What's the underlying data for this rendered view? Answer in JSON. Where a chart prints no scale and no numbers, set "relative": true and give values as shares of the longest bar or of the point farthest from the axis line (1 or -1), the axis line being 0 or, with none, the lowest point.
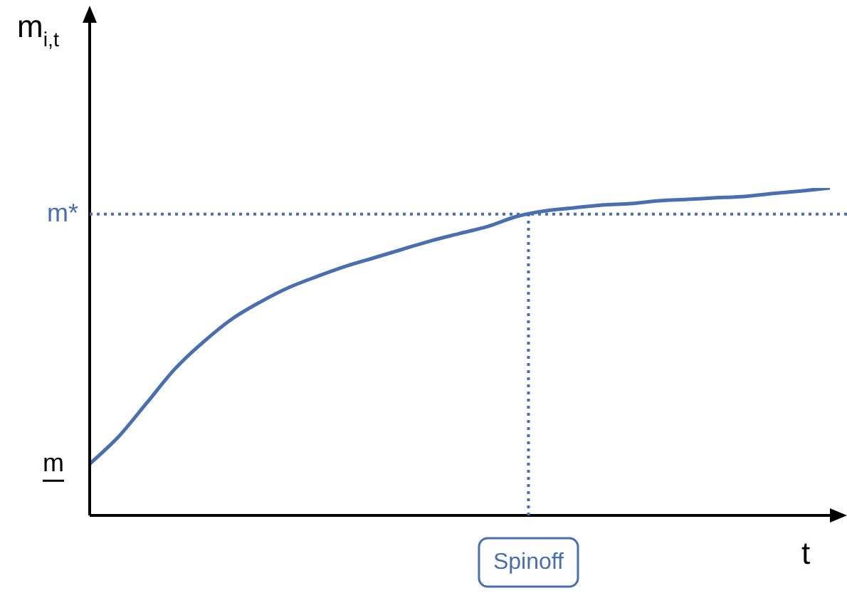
{
  "chart_data": {
    "type": "line",
    "relative": true,
    "xlabel": "t",
    "ylabel": "m$_{i,t}$",
    "legend": false,
    "marker": "none",
    "categories": [
      null,
      null,
      null,
      null,
      null,
      null,
      null,
      null,
      null,
      null,
      null,
      null,
      null,
      null,
      null,
      null,
      null,
      null,
      null,
      null,
      null,
      null,
      null,
      null,
      null,
      null,
      null
    ],
    "series": [
      {
        "color": "#4a6fb0",
        "values": [
          0.157,
          0.239,
          0.343,
          0.448,
          0.53,
          0.6,
          0.652,
          0.696,
          0.73,
          0.761,
          0.787,
          0.813,
          0.839,
          0.861,
          0.883,
          0.913,
          0.93,
          0.939,
          0.948,
          0.952,
          0.961,
          0.965,
          0.97,
          0.974,
          0.983,
          0.991,
          1
        ]
      }
    ],
    "ref_lines": [
      {
        "axis": "y",
        "value": 0.92,
        "label": "m*",
        "color": "#4a6fb0",
        "line_style": "dotted"
      }
    ],
    "annotations": [
      "m",
      "Spinoff"
    ]
  }
}
